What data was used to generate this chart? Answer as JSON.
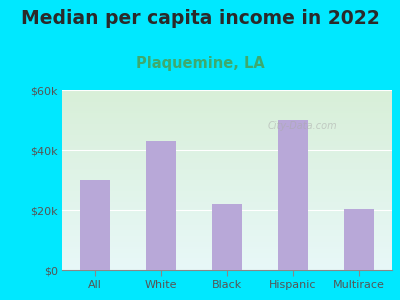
{
  "title": "Median per capita income in 2022",
  "subtitle": "Plaquemine, LA",
  "categories": [
    "All",
    "White",
    "Black",
    "Hispanic",
    "Multirace"
  ],
  "values": [
    30000,
    43000,
    22000,
    50000,
    20500
  ],
  "bar_color": "#b8a8d8",
  "title_fontsize": 13.5,
  "subtitle_fontsize": 10.5,
  "subtitle_color": "#3daa6e",
  "title_color": "#2a2a2a",
  "bg_outer": "#00e8ff",
  "inner_bg_top": "#d8efd8",
  "inner_bg_bottom": "#e8f8f8",
  "ylim": [
    0,
    60000
  ],
  "yticks": [
    0,
    20000,
    40000,
    60000
  ],
  "ytick_labels": [
    "$0",
    "$20k",
    "$40k",
    "$60k"
  ],
  "watermark": "City-Data.com",
  "tick_color": "#555555",
  "grid_color": "#ffffff"
}
